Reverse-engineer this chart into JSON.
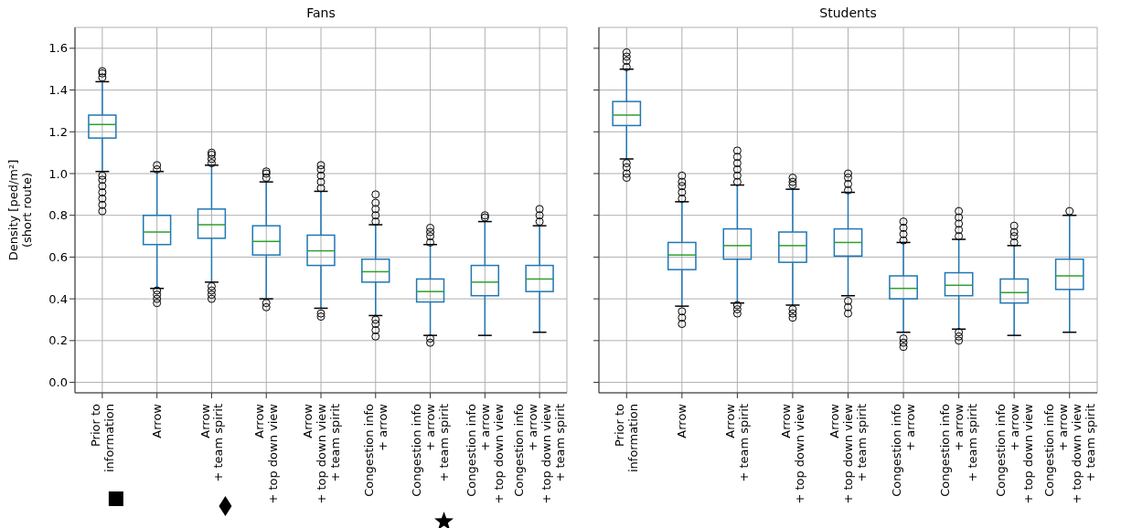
{
  "chart_data": [
    {
      "type": "box",
      "title": "Fans",
      "ylabel": "Density [ped/m²]\n(short route)",
      "categories": [
        "Prior to\ninformation",
        "Arrow",
        "Arrow\n+ team spirit",
        "Arrow\n+ top down view",
        "Arrow\n+ top down view\n+ team spirit",
        "Congestion info\n+ arrow",
        "Congestion info\n+ arrow\n+ team spirit",
        "Congestion info\n+ arrow\n+ top down view",
        "Congestion info\n+ arrow\n+ top down view\n+ team spirit"
      ],
      "ylim": [
        -0.05,
        1.7
      ],
      "yticks": [
        {
          "value": 0,
          "label": "0.0"
        },
        {
          "value": 0.2,
          "label": "0.2"
        },
        {
          "value": 0.4,
          "label": "0.4"
        },
        {
          "value": 0.6,
          "label": "0.6"
        },
        {
          "value": 0.8,
          "label": "0.8"
        },
        {
          "value": 1,
          "label": "1.0"
        },
        {
          "value": 1.2,
          "label": "1.2"
        },
        {
          "value": 1.4,
          "label": "1.4"
        },
        {
          "value": 1.6,
          "label": "1.6"
        }
      ],
      "grid": true,
      "series": [
        {
          "color": "#1f77b4",
          "boxes": [
            {
              "low": 1.01,
              "q1": 1.17,
              "median": 1.235,
              "q3": 1.28,
              "high": 1.44,
              "outliers": [
                1.46,
                1.48,
                1.49,
                0.82,
                0.85,
                0.88,
                0.91,
                0.94,
                0.97,
                0.99
              ]
            },
            {
              "low": 0.45,
              "q1": 0.66,
              "median": 0.72,
              "q3": 0.8,
              "high": 1.01,
              "outliers": [
                1.02,
                1.04,
                0.38,
                0.4,
                0.42,
                0.44
              ]
            },
            {
              "low": 0.48,
              "q1": 0.69,
              "median": 0.755,
              "q3": 0.83,
              "high": 1.04,
              "outliers": [
                1.05,
                1.07,
                1.09,
                1.1,
                0.4,
                0.42,
                0.44,
                0.46
              ]
            },
            {
              "low": 0.4,
              "q1": 0.61,
              "median": 0.675,
              "q3": 0.75,
              "high": 0.96,
              "outliers": [
                0.98,
                1.0,
                1.01,
                0.36,
                0.38
              ]
            },
            {
              "low": 0.355,
              "q1": 0.56,
              "median": 0.63,
              "q3": 0.705,
              "high": 0.915,
              "outliers": [
                0.93,
                0.96,
                0.99,
                1.02,
                1.04,
                0.315,
                0.33
              ]
            },
            {
              "low": 0.32,
              "q1": 0.48,
              "median": 0.53,
              "q3": 0.59,
              "high": 0.755,
              "outliers": [
                0.77,
                0.8,
                0.83,
                0.86,
                0.9,
                0.22,
                0.25,
                0.28,
                0.3
              ]
            },
            {
              "low": 0.225,
              "q1": 0.385,
              "median": 0.435,
              "q3": 0.495,
              "high": 0.66,
              "outliers": [
                0.67,
                0.7,
                0.72,
                0.74,
                0.19,
                0.21
              ]
            },
            {
              "low": 0.225,
              "q1": 0.415,
              "median": 0.48,
              "q3": 0.56,
              "high": 0.77,
              "outliers": [
                0.79,
                0.8
              ]
            },
            {
              "low": 0.24,
              "q1": 0.435,
              "median": 0.495,
              "q3": 0.56,
              "high": 0.75,
              "outliers": [
                0.77,
                0.8,
                0.83
              ]
            }
          ]
        }
      ]
    },
    {
      "type": "box",
      "title": "Students",
      "categories": [
        "Prior to\ninformation",
        "Arrow",
        "Arrow\n+ team spirit",
        "Arrow\n+ top down view",
        "Arrow\n+ top down view\n+ team spirit",
        "Congestion info\n+ arrow",
        "Congestion info\n+ arrow\n+ team spirit",
        "Congestion info\n+ arrow\n+ top down view",
        "Congestion info\n+ arrow\n+ top down view\n+ team spirit"
      ],
      "ylim": [
        -0.05,
        1.7
      ],
      "yticks": [
        {
          "value": 0,
          "label": null
        },
        {
          "value": 0.2,
          "label": null
        },
        {
          "value": 0.4,
          "label": null
        },
        {
          "value": 0.6,
          "label": null
        },
        {
          "value": 0.8,
          "label": null
        },
        {
          "value": 1,
          "label": null
        },
        {
          "value": 1.2,
          "label": null
        },
        {
          "value": 1.4,
          "label": null
        },
        {
          "value": 1.6,
          "label": null
        }
      ],
      "tick_labels": "x",
      "grid": true,
      "series": [
        {
          "color": "#1f77b4",
          "boxes": [
            {
              "low": 1.07,
              "q1": 1.23,
              "median": 1.28,
              "q3": 1.345,
              "high": 1.5,
              "outliers": [
                1.51,
                1.54,
                1.56,
                1.58,
                0.98,
                1.0,
                1.03,
                1.05
              ]
            },
            {
              "low": 0.365,
              "q1": 0.54,
              "median": 0.61,
              "q3": 0.67,
              "high": 0.865,
              "outliers": [
                0.99,
                0.88,
                0.91,
                0.94,
                0.96,
                0.28,
                0.31,
                0.34
              ]
            },
            {
              "low": 0.38,
              "q1": 0.59,
              "median": 0.655,
              "q3": 0.735,
              "high": 0.945,
              "outliers": [
                0.96,
                0.99,
                1.02,
                1.05,
                1.08,
                1.11,
                0.33,
                0.35,
                0.37
              ]
            },
            {
              "low": 0.37,
              "q1": 0.575,
              "median": 0.655,
              "q3": 0.72,
              "high": 0.925,
              "outliers": [
                0.945,
                0.96,
                0.98,
                0.31,
                0.33,
                0.35
              ]
            },
            {
              "low": 0.415,
              "q1": 0.605,
              "median": 0.67,
              "q3": 0.735,
              "high": 0.91,
              "outliers": [
                0.92,
                0.95,
                0.98,
                1.0,
                0.33,
                0.36,
                0.39
              ]
            },
            {
              "low": 0.24,
              "q1": 0.4,
              "median": 0.45,
              "q3": 0.51,
              "high": 0.67,
              "outliers": [
                0.68,
                0.71,
                0.74,
                0.77,
                0.17,
                0.19,
                0.21
              ]
            },
            {
              "low": 0.255,
              "q1": 0.415,
              "median": 0.465,
              "q3": 0.525,
              "high": 0.685,
              "outliers": [
                0.7,
                0.73,
                0.76,
                0.79,
                0.82,
                0.2,
                0.22,
                0.24
              ]
            },
            {
              "low": 0.225,
              "q1": 0.38,
              "median": 0.43,
              "q3": 0.495,
              "high": 0.655,
              "outliers": [
                0.67,
                0.7,
                0.72,
                0.75
              ]
            },
            {
              "low": 0.24,
              "q1": 0.445,
              "median": 0.51,
              "q3": 0.59,
              "high": 0.8,
              "outliers": [
                0.82
              ]
            }
          ]
        }
      ]
    }
  ]
}
